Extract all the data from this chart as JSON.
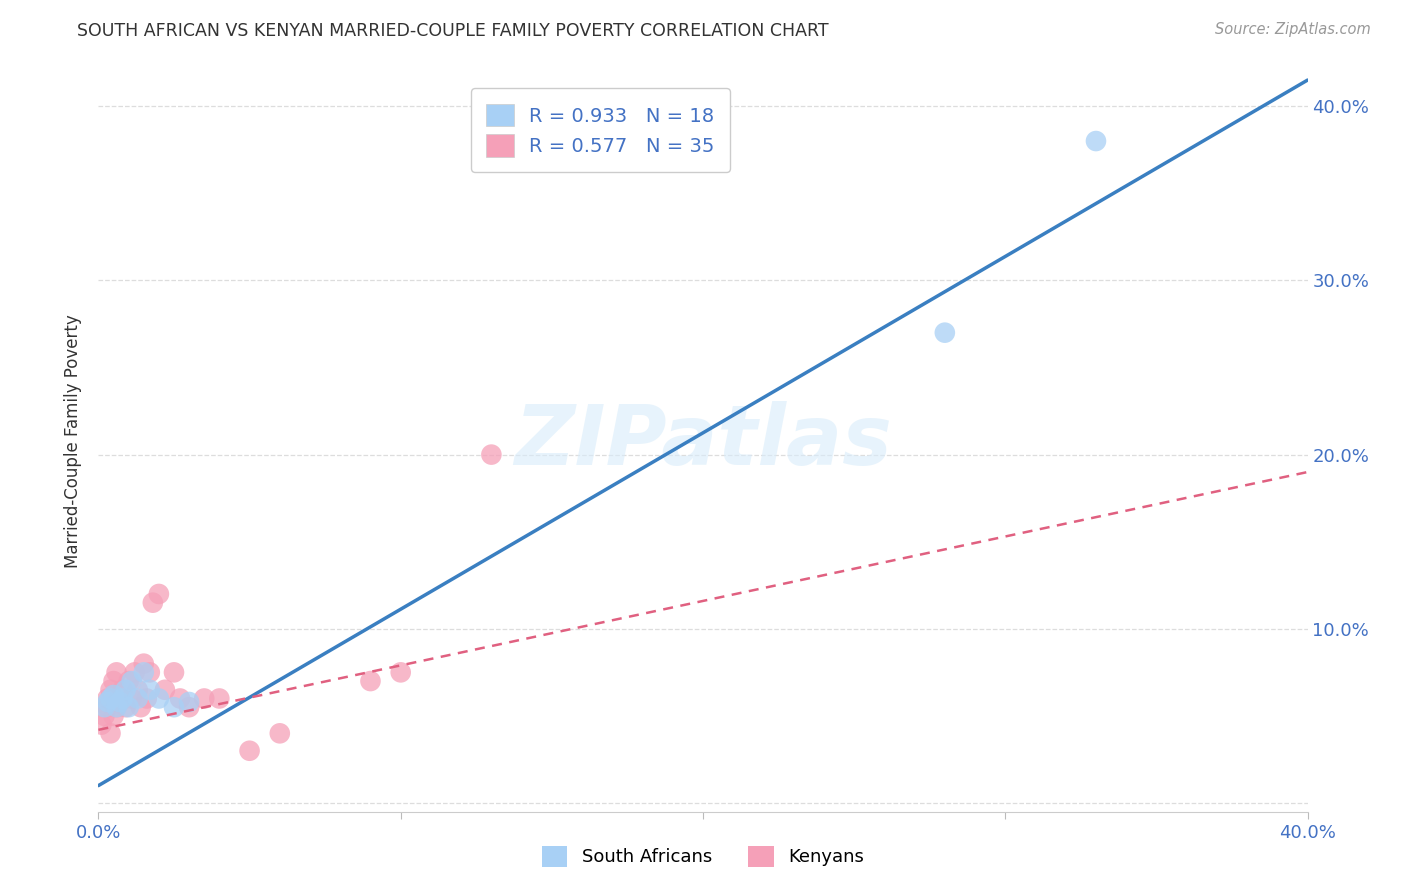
{
  "title": "SOUTH AFRICAN VS KENYAN MARRIED-COUPLE FAMILY POVERTY CORRELATION CHART",
  "source": "Source: ZipAtlas.com",
  "ylabel": "Married-Couple Family Poverty",
  "watermark": "ZIPatlas",
  "sa_R": 0.933,
  "sa_N": 18,
  "ke_R": 0.577,
  "ke_N": 35,
  "sa_color": "#a8d0f5",
  "ke_color": "#f5a0b8",
  "sa_line_color": "#3a7fc1",
  "ke_line_color": "#e06080",
  "legend_label_sa": "South Africans",
  "legend_label_ke": "Kenyans",
  "sa_scatter_x": [
    0.002,
    0.003,
    0.004,
    0.005,
    0.006,
    0.007,
    0.008,
    0.009,
    0.01,
    0.011,
    0.013,
    0.015,
    0.017,
    0.02,
    0.025,
    0.03,
    0.28,
    0.33
  ],
  "sa_scatter_y": [
    0.055,
    0.058,
    0.06,
    0.062,
    0.055,
    0.058,
    0.06,
    0.065,
    0.055,
    0.07,
    0.06,
    0.075,
    0.065,
    0.06,
    0.055,
    0.058,
    0.27,
    0.38
  ],
  "ke_scatter_x": [
    0.001,
    0.002,
    0.003,
    0.003,
    0.004,
    0.004,
    0.005,
    0.005,
    0.006,
    0.006,
    0.007,
    0.007,
    0.008,
    0.009,
    0.01,
    0.011,
    0.012,
    0.013,
    0.014,
    0.015,
    0.016,
    0.017,
    0.018,
    0.02,
    0.022,
    0.025,
    0.027,
    0.03,
    0.035,
    0.04,
    0.05,
    0.06,
    0.09,
    0.1,
    0.13
  ],
  "ke_scatter_y": [
    0.045,
    0.05,
    0.055,
    0.06,
    0.04,
    0.065,
    0.05,
    0.07,
    0.055,
    0.075,
    0.06,
    0.058,
    0.065,
    0.055,
    0.07,
    0.06,
    0.075,
    0.065,
    0.055,
    0.08,
    0.06,
    0.075,
    0.115,
    0.12,
    0.065,
    0.075,
    0.06,
    0.055,
    0.06,
    0.06,
    0.03,
    0.04,
    0.07,
    0.075,
    0.2
  ],
  "sa_line_x": [
    0.0,
    0.4
  ],
  "sa_line_y": [
    0.01,
    0.415
  ],
  "ke_line_x": [
    0.0,
    0.4
  ],
  "ke_line_y": [
    0.042,
    0.19
  ],
  "xlim": [
    0.0,
    0.4
  ],
  "ylim": [
    0.0,
    0.42
  ],
  "background_color": "#ffffff",
  "grid_color": "#dddddd",
  "title_color": "#333333",
  "axis_color": "#4472c4"
}
